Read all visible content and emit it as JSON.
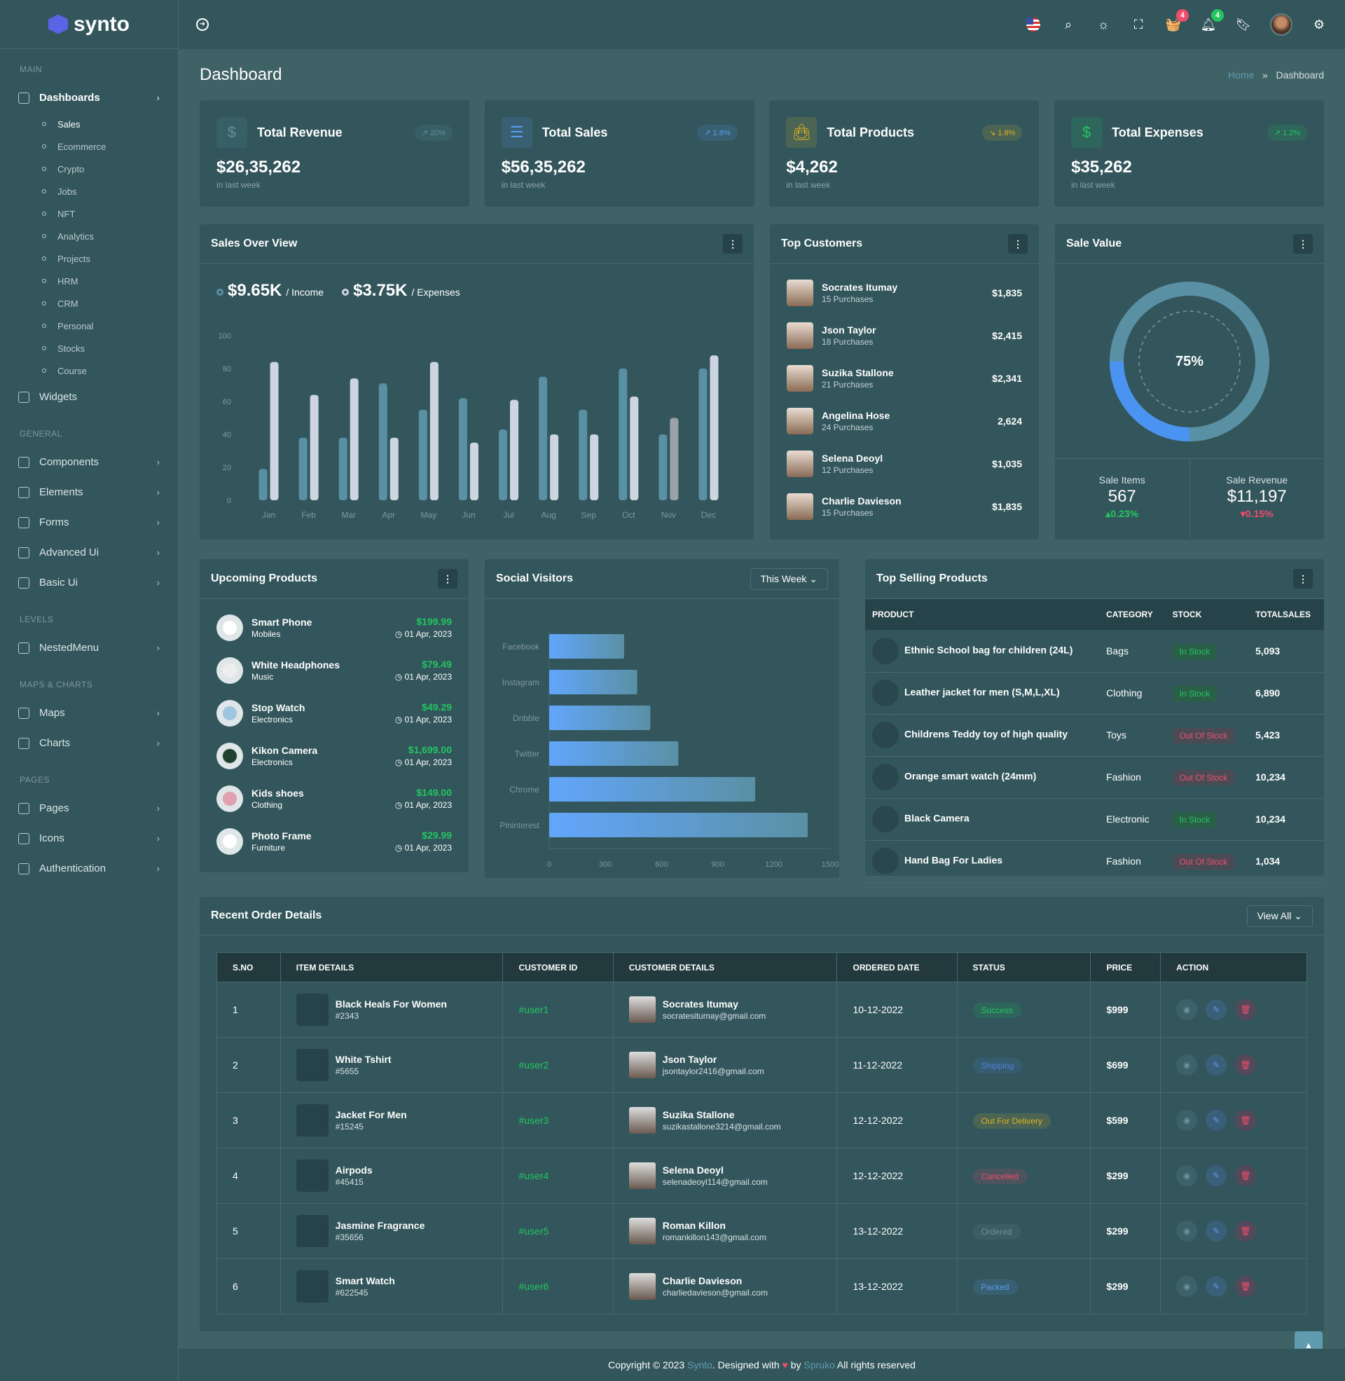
{
  "brand": {
    "name": "synto",
    "accent": "#5b63e6"
  },
  "sidebar": {
    "sections": [
      {
        "title": "MAIN",
        "items": [
          {
            "label": "Dashboards",
            "icon": "home-icon",
            "expanded": true,
            "children": [
              "Sales",
              "Ecommerce",
              "Crypto",
              "Jobs",
              "NFT",
              "Analytics",
              "Projects",
              "HRM",
              "CRM",
              "Personal",
              "Stocks",
              "Course"
            ]
          },
          {
            "label": "Widgets",
            "icon": "widgets-icon"
          }
        ]
      },
      {
        "title": "GENERAL",
        "items": [
          {
            "label": "Components",
            "icon": "components-icon",
            "chev": true
          },
          {
            "label": "Elements",
            "icon": "elements-icon",
            "chev": true
          },
          {
            "label": "Forms",
            "icon": "forms-icon",
            "chev": true
          },
          {
            "label": "Advanced Ui",
            "icon": "layers-icon",
            "chev": true
          },
          {
            "label": "Basic Ui",
            "icon": "basic-ui-icon",
            "chev": true
          }
        ]
      },
      {
        "title": "LEVELS",
        "items": [
          {
            "label": "NestedMenu",
            "icon": "nested-icon",
            "chev": true
          }
        ]
      },
      {
        "title": "MAPS & CHARTS",
        "items": [
          {
            "label": "Maps",
            "icon": "map-pin-icon",
            "chev": true
          },
          {
            "label": "Charts",
            "icon": "pie-chart-icon",
            "chev": true
          }
        ]
      },
      {
        "title": "PAGES",
        "items": [
          {
            "label": "Pages",
            "icon": "book-icon",
            "chev": true
          },
          {
            "label": "Icons",
            "icon": "icons-icon",
            "chev": true
          },
          {
            "label": "Authentication",
            "icon": "info-icon",
            "chev": true
          }
        ]
      }
    ],
    "active_child": "Sales"
  },
  "header": {
    "notif_cart": "4",
    "notif_bell": "4"
  },
  "page": {
    "title": "Dashboard",
    "breadcrumb": [
      "Home",
      "Dashboard"
    ]
  },
  "stats": [
    {
      "title": "Total Revenue",
      "value": "$26,35,262",
      "sub": "in last week",
      "pct": "20%",
      "trend": "up",
      "color": "#5f8f9e"
    },
    {
      "title": "Total Sales",
      "value": "$56,35,262",
      "sub": "in last week",
      "pct": "1.8%",
      "trend": "up",
      "color": "#5b9cf0"
    },
    {
      "title": "Total Products",
      "value": "$4,262",
      "sub": "in last week",
      "pct": "1.8%",
      "trend": "down",
      "color": "#e0b320"
    },
    {
      "title": "Total Expenses",
      "value": "$35,262",
      "sub": "in last week",
      "pct": "1.2%",
      "trend": "up",
      "color": "#23c55e"
    }
  ],
  "sales_overview": {
    "title": "Sales Over View",
    "income_value": "$9.65K",
    "income_label": "/ Income",
    "expense_value": "$3.75K",
    "expense_label": "/ Expenses"
  },
  "chart_data": [
    {
      "type": "bar",
      "title": "",
      "categories": [
        "Jan",
        "Feb",
        "Mar",
        "Apr",
        "May",
        "Jun",
        "Jul",
        "Aug",
        "Sep",
        "Oct",
        "Nov",
        "Dec"
      ],
      "series": [
        {
          "name": "Income",
          "color": "#5a90a4",
          "values": [
            19,
            38,
            38,
            71,
            55,
            62,
            43,
            75,
            55,
            80,
            40,
            80
          ]
        },
        {
          "name": "Expenses",
          "color": "#cdd6e0",
          "values": [
            84,
            64,
            74,
            38,
            84,
            35,
            61,
            40,
            40,
            63,
            50,
            88
          ]
        }
      ],
      "yticks": [
        0,
        20,
        40,
        60,
        80,
        100
      ],
      "ylim": [
        0,
        100
      ],
      "grid": false
    },
    {
      "type": "bar",
      "orientation": "horizontal",
      "title": "",
      "categories": [
        "Facebook",
        "Instagram",
        "Dribble",
        "Twitter",
        "Chrome",
        "Pininterest"
      ],
      "values": [
        400,
        470,
        540,
        690,
        1100,
        1380
      ],
      "xticks": [
        0,
        300,
        600,
        900,
        1200,
        1500
      ],
      "xlim": [
        0,
        1500
      ],
      "grid": false
    }
  ],
  "top_customers": {
    "title": "Top Customers",
    "items": [
      {
        "name": "Socrates Itumay",
        "purchases": "15 Purchases",
        "amount": "$1,835"
      },
      {
        "name": "Json Taylor",
        "purchases": "18 Purchases",
        "amount": "$2,415"
      },
      {
        "name": "Suzika Stallone",
        "purchases": "21 Purchases",
        "amount": "$2,341"
      },
      {
        "name": "Angelina Hose",
        "purchases": "24 Purchases",
        "amount": "2,624"
      },
      {
        "name": "Selena Deoyl",
        "purchases": "12 Purchases",
        "amount": "$1,035"
      },
      {
        "name": "Charlie Davieson",
        "purchases": "15 Purchases",
        "amount": "$1,835"
      }
    ]
  },
  "sale_value": {
    "title": "Sale Value",
    "percent": "75%",
    "percent_value": 75,
    "items_label": "Sale Items",
    "items_value": "567",
    "items_change": "0.23%",
    "revenue_label": "Sale Revenue",
    "revenue_value": "$11,197",
    "revenue_change": "0.15%"
  },
  "upcoming": {
    "title": "Upcoming Products",
    "items": [
      {
        "name": "Smart Phone",
        "cat": "Mobiles",
        "price": "$199.99",
        "date": "01 Apr, 2023"
      },
      {
        "name": "White Headphones",
        "cat": "Music",
        "price": "$79.49",
        "date": "01 Apr, 2023"
      },
      {
        "name": "Stop Watch",
        "cat": "Electronics",
        "price": "$49.29",
        "date": "01 Apr, 2023"
      },
      {
        "name": "Kikon Camera",
        "cat": "Electronics",
        "price": "$1,699.00",
        "date": "01 Apr, 2023"
      },
      {
        "name": "Kids shoes",
        "cat": "Clothing",
        "price": "$149.00",
        "date": "01 Apr, 2023"
      },
      {
        "name": "Photo Frame",
        "cat": "Furniture",
        "price": "$29.99",
        "date": "01 Apr, 2023"
      }
    ]
  },
  "social": {
    "title": "Social Visitors",
    "filter": "This Week"
  },
  "top_selling": {
    "title": "Top Selling Products",
    "columns": [
      "PRODUCT",
      "CATEGORY",
      "STOCK",
      "TOTALSALES"
    ],
    "rows": [
      {
        "product": "Ethnic School bag for children (24L)",
        "category": "Bags",
        "stock": "In Stock",
        "sales": "5,093"
      },
      {
        "product": "Leather jacket for men (S,M,L,XL)",
        "category": "Clothing",
        "stock": "In Stock",
        "sales": "6,890"
      },
      {
        "product": "Childrens Teddy toy of high quality",
        "category": "Toys",
        "stock": "Out Of Stock",
        "sales": "5,423"
      },
      {
        "product": "Orange smart watch (24mm)",
        "category": "Fashion",
        "stock": "Out Of Stock",
        "sales": "10,234"
      },
      {
        "product": "Black Camera",
        "category": "Electronic",
        "stock": "In Stock",
        "sales": "10,234"
      },
      {
        "product": "Hand Bag For Ladies",
        "category": "Fashion",
        "stock": "Out Of Stock",
        "sales": "1,034"
      }
    ]
  },
  "orders": {
    "title": "Recent Order Details",
    "view_all": "View All",
    "columns": [
      "S.NO",
      "ITEM DETAILS",
      "CUSTOMER ID",
      "CUSTOMER DETAILS",
      "ORDERED DATE",
      "STATUS",
      "PRICE",
      "ACTION"
    ],
    "rows": [
      {
        "sno": "1",
        "item": "Black Heals For Women",
        "code": "#2343",
        "cid": "#user1",
        "cname": "Socrates Itumay",
        "email": "socratesitumay@gmail.com",
        "date": "10-12-2022",
        "status": "Success",
        "status_color": "#23c55e",
        "price": "$999"
      },
      {
        "sno": "2",
        "item": "White Tshirt",
        "code": "#5655",
        "cid": "#user2",
        "cname": "Json Taylor",
        "email": "jsontaylor2416@gmail.com",
        "date": "11-12-2022",
        "status": "Shipping",
        "status_color": "#4f7fe0",
        "price": "$699"
      },
      {
        "sno": "3",
        "item": "Jacket For Men",
        "code": "#15245",
        "cid": "#user3",
        "cname": "Suzika Stallone",
        "email": "suzikastallone3214@gmail.com",
        "date": "12-12-2022",
        "status": "Out For Delivery",
        "status_color": "#e0b320",
        "price": "$599"
      },
      {
        "sno": "4",
        "item": "Airpods",
        "code": "#45415",
        "cid": "#user4",
        "cname": "Selena Deoyl",
        "email": "selenadeoyl114@gmail.com",
        "date": "12-12-2022",
        "status": "Cancelled",
        "status_color": "#f14c6a",
        "price": "$299"
      },
      {
        "sno": "5",
        "item": "Jasmine Fragrance",
        "code": "#35656",
        "cid": "#user5",
        "cname": "Roman Killon",
        "email": "romankillon143@gmail.com",
        "date": "13-12-2022",
        "status": "Ordered",
        "status_color": "#6f8f99",
        "price": "$299"
      },
      {
        "sno": "6",
        "item": "Smart Watch",
        "code": "#622545",
        "cid": "#user6",
        "cname": "Charlie Davieson",
        "email": "charliedavieson@gmail.com",
        "date": "13-12-2022",
        "status": "Packed",
        "status_color": "#5b9cf0",
        "price": "$299"
      }
    ]
  },
  "footer": {
    "pre": "Copyright © 2023 ",
    "brand": "Synto",
    "mid": ". Designed with ",
    "by": " by ",
    "author": "Spruko",
    "post": " All rights reserved"
  }
}
